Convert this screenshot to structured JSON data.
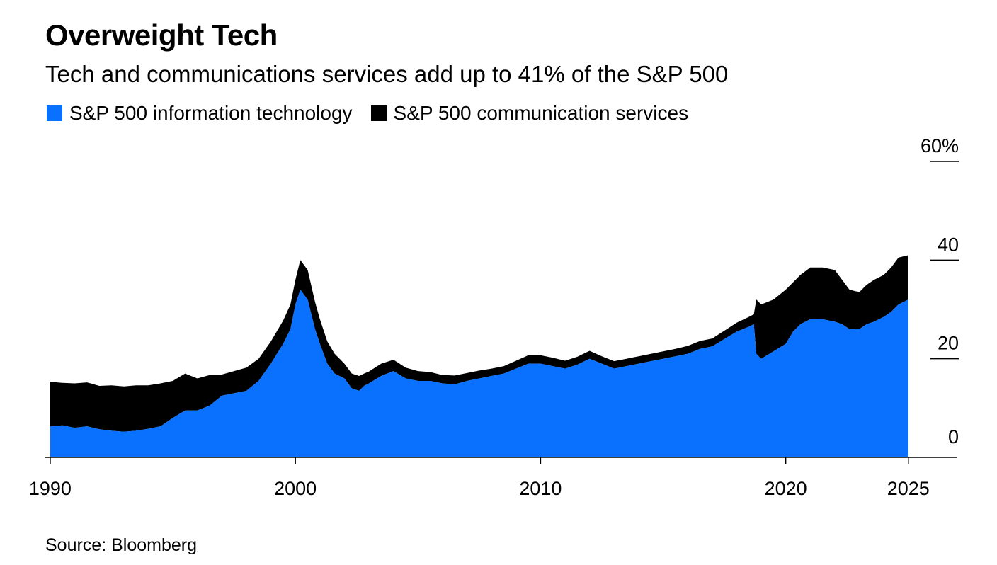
{
  "header": {
    "title": "Overweight Tech",
    "subtitle": "Tech and communications services add up to 41% of the S&P 500"
  },
  "source": "Source: Bloomberg",
  "colors": {
    "it": "#0a71ff",
    "comm": "#000000"
  },
  "chart_data": {
    "type": "area",
    "stacked": true,
    "title": "Overweight Tech",
    "subtitle": "Tech and communications services add up to 41% of the S&P 500",
    "y_unit": "%",
    "ylim": [
      0,
      60
    ],
    "xlim": [
      1989.8,
      2027.0
    ],
    "y_ticks": [
      {
        "value": 60,
        "label": "60%"
      },
      {
        "value": 40,
        "label": "40"
      },
      {
        "value": 20,
        "label": "20"
      },
      {
        "value": 0,
        "label": "0"
      }
    ],
    "x_ticks": [
      {
        "value": 1990,
        "label": "1990"
      },
      {
        "value": 2000,
        "label": "2000"
      },
      {
        "value": 2010,
        "label": "2010"
      },
      {
        "value": 2020,
        "label": "2020"
      },
      {
        "value": 2025,
        "label": "2025"
      }
    ],
    "grid": false,
    "legend_position": "top-left",
    "x": [
      1990.0,
      1990.5,
      1991.0,
      1991.5,
      1992.0,
      1992.5,
      1993.0,
      1993.5,
      1994.0,
      1994.5,
      1995.0,
      1995.5,
      1996.0,
      1996.5,
      1997.0,
      1997.5,
      1998.0,
      1998.5,
      1999.0,
      1999.5,
      1999.8,
      2000.0,
      2000.2,
      2000.5,
      2000.8,
      2001.0,
      2001.3,
      2001.6,
      2002.0,
      2002.3,
      2002.6,
      2002.8,
      2003.0,
      2003.5,
      2004.0,
      2004.5,
      2005.0,
      2005.5,
      2006.0,
      2006.5,
      2007.0,
      2007.5,
      2008.0,
      2008.5,
      2009.0,
      2009.5,
      2010.0,
      2010.5,
      2011.0,
      2011.5,
      2012.0,
      2012.5,
      2013.0,
      2013.5,
      2014.0,
      2014.5,
      2015.0,
      2015.5,
      2016.0,
      2016.5,
      2017.0,
      2017.5,
      2018.0,
      2018.5,
      2018.7,
      2018.8,
      2019.0,
      2019.5,
      2020.0,
      2020.3,
      2020.6,
      2021.0,
      2021.5,
      2022.0,
      2022.3,
      2022.6,
      2023.0,
      2023.3,
      2023.6,
      2024.0,
      2024.3,
      2024.6,
      2025.0
    ],
    "series": [
      {
        "name": "S&P 500 information technology",
        "values": [
          6.3,
          6.5,
          6.0,
          6.3,
          5.7,
          5.4,
          5.2,
          5.4,
          5.8,
          6.3,
          8.0,
          9.5,
          9.5,
          10.5,
          12.5,
          13.0,
          13.5,
          15.5,
          19.0,
          23.0,
          26.0,
          31.0,
          34.0,
          32.0,
          26.0,
          23.0,
          19.0,
          17.0,
          16.0,
          14.0,
          13.5,
          14.5,
          15.0,
          16.5,
          17.5,
          16.0,
          15.5,
          15.5,
          15.0,
          14.8,
          15.5,
          16.0,
          16.5,
          17.0,
          18.0,
          19.0,
          19.0,
          18.5,
          18.0,
          18.8,
          20.0,
          19.0,
          18.0,
          18.5,
          19.0,
          19.5,
          20.0,
          20.5,
          21.0,
          22.0,
          22.5,
          24.0,
          25.5,
          26.5,
          27.0,
          21.0,
          20.0,
          21.5,
          23.0,
          25.5,
          27.0,
          28.0,
          28.0,
          27.5,
          27.0,
          26.0,
          26.0,
          27.0,
          27.5,
          28.5,
          29.5,
          31.0,
          32.0
        ]
      },
      {
        "name": "S&P 500 communication services",
        "values": [
          9.0,
          8.6,
          9.0,
          8.9,
          8.8,
          9.2,
          9.2,
          9.2,
          8.8,
          8.7,
          7.5,
          7.5,
          6.5,
          6.2,
          4.3,
          4.5,
          4.7,
          4.5,
          4.5,
          4.7,
          5.0,
          5.0,
          6.0,
          6.0,
          5.5,
          5.0,
          4.5,
          4.0,
          3.0,
          3.0,
          3.0,
          2.5,
          2.4,
          2.5,
          2.3,
          2.2,
          2.0,
          1.8,
          1.7,
          1.8,
          1.6,
          1.6,
          1.5,
          1.5,
          1.6,
          1.7,
          1.7,
          1.7,
          1.6,
          1.6,
          1.6,
          1.5,
          1.5,
          1.5,
          1.5,
          1.5,
          1.5,
          1.5,
          1.6,
          1.6,
          1.6,
          1.7,
          1.8,
          2.0,
          2.0,
          11.0,
          11.0,
          10.5,
          11.0,
          10.0,
          10.0,
          10.5,
          10.5,
          10.5,
          9.0,
          8.0,
          7.5,
          8.0,
          8.5,
          8.5,
          9.0,
          9.5,
          9.0
        ]
      }
    ]
  }
}
